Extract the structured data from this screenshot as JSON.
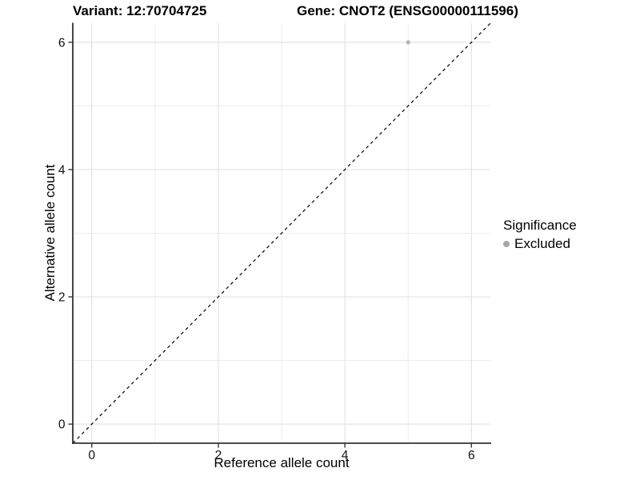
{
  "chart_data": {
    "type": "scatter",
    "titles": [
      "Variant: 12:70704725",
      "Gene: CNOT2 (ENSG00000111596)"
    ],
    "xlabel": "Reference allele count",
    "ylabel": "Alternative allele count",
    "xlim": [
      -0.3,
      6.3
    ],
    "ylim": [
      -0.3,
      6.3
    ],
    "xticks": [
      0,
      2,
      4,
      6
    ],
    "yticks": [
      0,
      2,
      4,
      6
    ],
    "x_minor_ticks": [
      1,
      3,
      5
    ],
    "y_minor_ticks": [
      1,
      3,
      5
    ],
    "grid": true,
    "points": [
      {
        "x": 5,
        "y": 6,
        "series": "Excluded"
      }
    ],
    "reference_line": {
      "kind": "identity",
      "slope": 1,
      "intercept": 0,
      "style": "dashed"
    },
    "legend": {
      "title": "Significance",
      "position": "right",
      "entries": [
        {
          "label": "Excluded",
          "color": "#a6a6a6"
        }
      ]
    }
  },
  "colors": {
    "background": "#ffffff",
    "grid_major": "#e3e3e3",
    "grid_minor": "#ececec",
    "axis_line": "#333333",
    "tick_label": "#111111",
    "title_text": "#000000",
    "point": "#b4b4b4",
    "reference_line": "#000000"
  }
}
